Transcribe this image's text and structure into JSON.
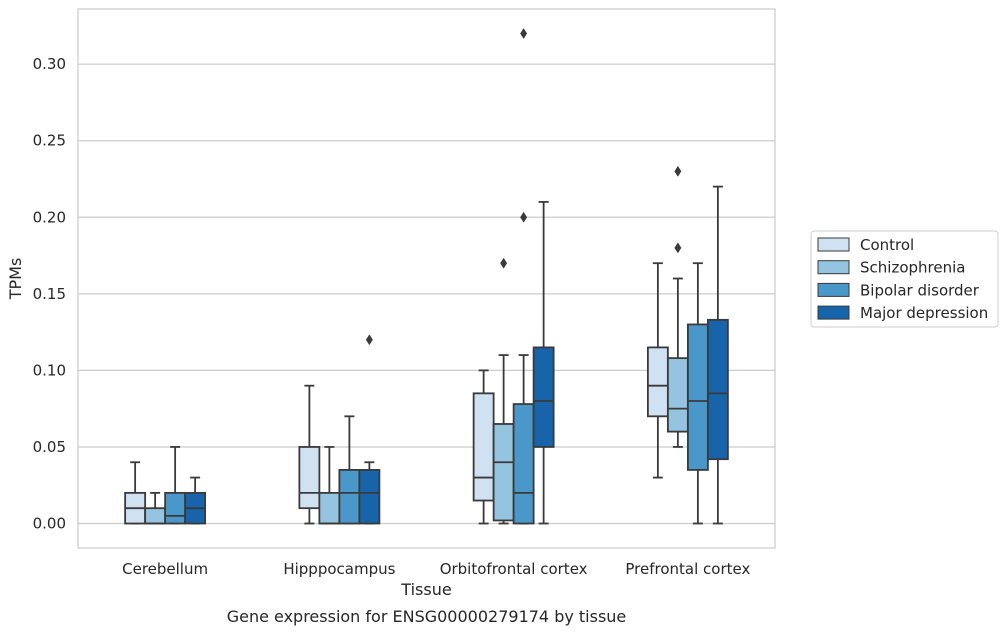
{
  "caption": "Gene expression for ENSG00000279174 by tissue",
  "chart_data": {
    "type": "boxplot",
    "xlabel": "Tissue",
    "ylabel": "TPMs",
    "ylim": [
      -0.016,
      0.336
    ],
    "yticks": [
      0.0,
      0.05,
      0.1,
      0.15,
      0.2,
      0.25,
      0.3
    ],
    "ytick_labels": [
      "0.00",
      "0.05",
      "0.10",
      "0.15",
      "0.20",
      "0.25",
      "0.30"
    ],
    "grid": "horizontal",
    "legend_position": "right",
    "categories": [
      "Cerebellum",
      "Hipppocampus",
      "Orbitofrontal cortex",
      "Prefrontal cortex"
    ],
    "series": [
      {
        "name": "Control",
        "color": "#d0e1f2",
        "boxes": [
          {
            "whislo": 0.0,
            "q1": 0.0,
            "med": 0.01,
            "q3": 0.02,
            "whishi": 0.04,
            "fliers": []
          },
          {
            "whislo": 0.0,
            "q1": 0.01,
            "med": 0.02,
            "q3": 0.05,
            "whishi": 0.09,
            "fliers": []
          },
          {
            "whislo": 0.0,
            "q1": 0.015,
            "med": 0.03,
            "q3": 0.085,
            "whishi": 0.1,
            "fliers": []
          },
          {
            "whislo": 0.03,
            "q1": 0.07,
            "med": 0.09,
            "q3": 0.115,
            "whishi": 0.17,
            "fliers": []
          }
        ]
      },
      {
        "name": "Schizophrenia",
        "color": "#94c4df",
        "boxes": [
          {
            "whislo": 0.0,
            "q1": 0.0,
            "med": 0.0,
            "q3": 0.01,
            "whishi": 0.02,
            "fliers": []
          },
          {
            "whislo": 0.0,
            "q1": 0.0,
            "med": 0.0,
            "q3": 0.02,
            "whishi": 0.05,
            "fliers": []
          },
          {
            "whislo": 0.0,
            "q1": 0.002,
            "med": 0.04,
            "q3": 0.065,
            "whishi": 0.11,
            "fliers": [
              0.17
            ]
          },
          {
            "whislo": 0.05,
            "q1": 0.06,
            "med": 0.075,
            "q3": 0.108,
            "whishi": 0.16,
            "fliers": [
              0.18,
              0.23
            ]
          }
        ]
      },
      {
        "name": "Bipolar disorder",
        "color": "#4a98c9",
        "boxes": [
          {
            "whislo": 0.0,
            "q1": 0.0,
            "med": 0.005,
            "q3": 0.02,
            "whishi": 0.05,
            "fliers": []
          },
          {
            "whislo": 0.0,
            "q1": 0.0,
            "med": 0.02,
            "q3": 0.035,
            "whishi": 0.07,
            "fliers": []
          },
          {
            "whislo": 0.0,
            "q1": 0.0,
            "med": 0.02,
            "q3": 0.078,
            "whishi": 0.11,
            "fliers": [
              0.2,
              0.32
            ]
          },
          {
            "whislo": 0.0,
            "q1": 0.035,
            "med": 0.08,
            "q3": 0.13,
            "whishi": 0.17,
            "fliers": []
          }
        ]
      },
      {
        "name": "Major depression",
        "color": "#1764ab",
        "boxes": [
          {
            "whislo": 0.0,
            "q1": 0.0,
            "med": 0.01,
            "q3": 0.02,
            "whishi": 0.03,
            "fliers": []
          },
          {
            "whislo": 0.0,
            "q1": 0.0,
            "med": 0.02,
            "q3": 0.035,
            "whishi": 0.04,
            "fliers": [
              0.12
            ]
          },
          {
            "whislo": 0.0,
            "q1": 0.05,
            "med": 0.08,
            "q3": 0.115,
            "whishi": 0.21,
            "fliers": []
          },
          {
            "whislo": 0.0,
            "q1": 0.042,
            "med": 0.085,
            "q3": 0.133,
            "whishi": 0.22,
            "fliers": []
          }
        ]
      }
    ]
  }
}
